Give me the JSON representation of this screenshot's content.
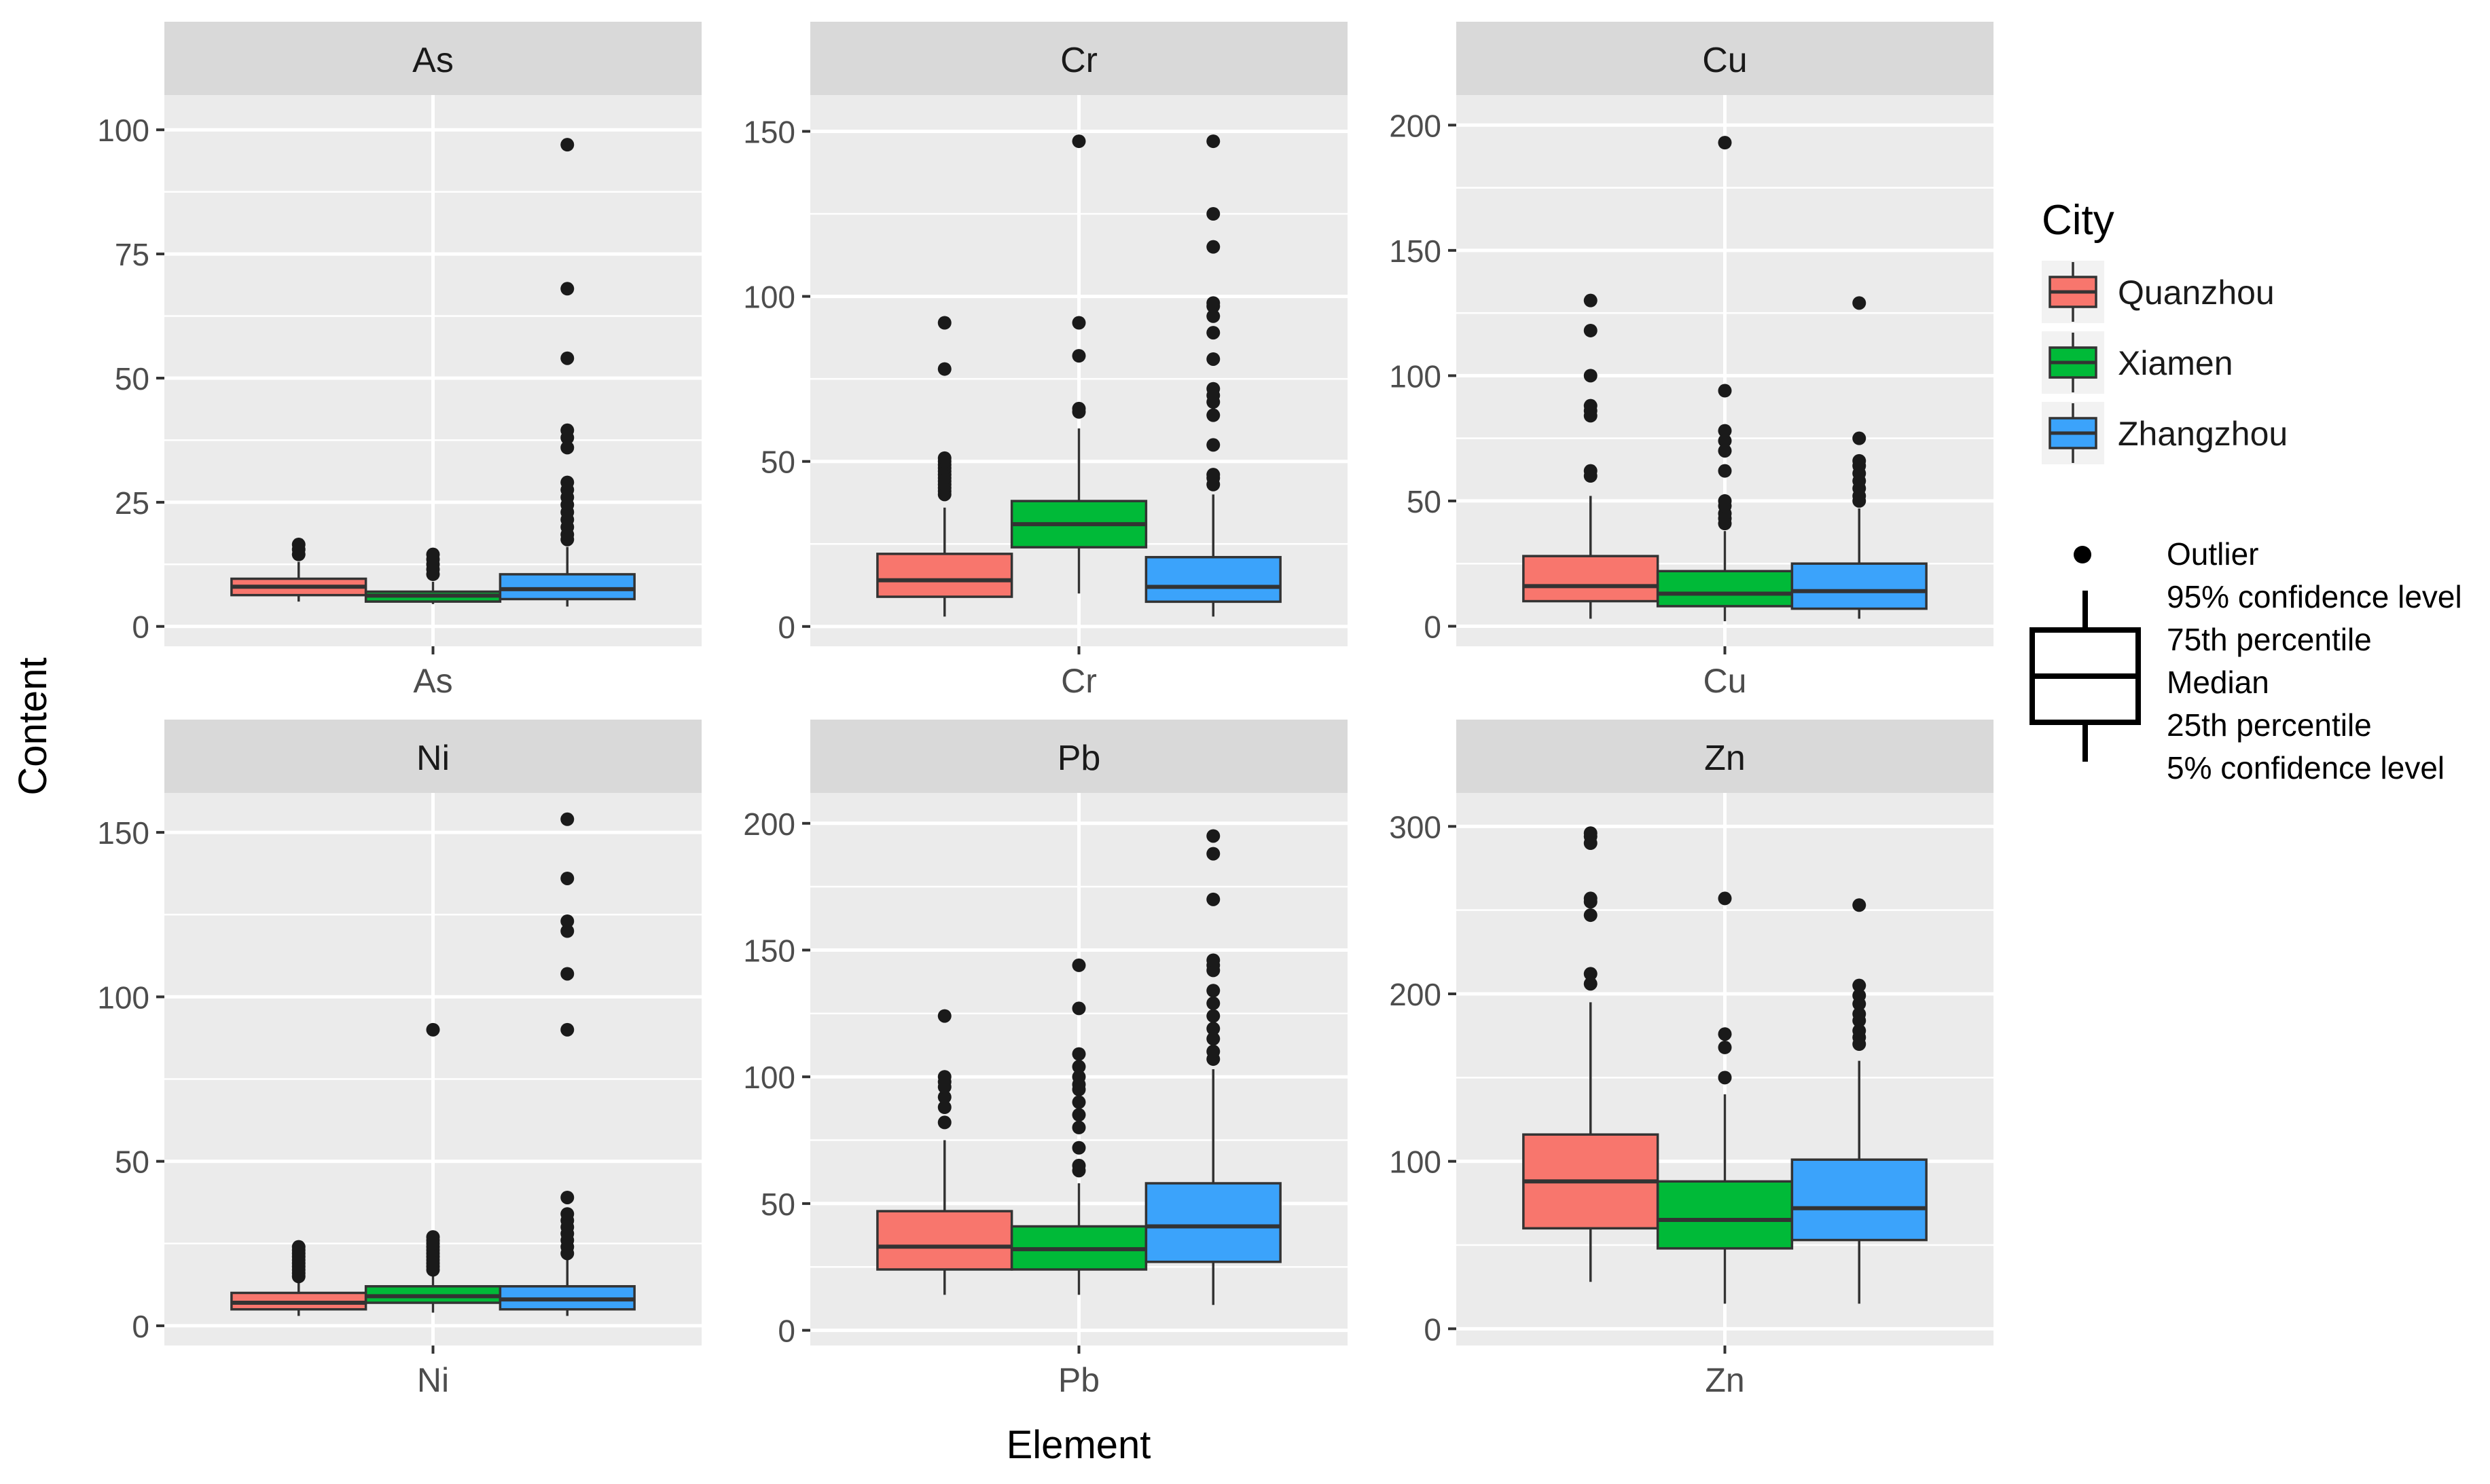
{
  "chart_data": {
    "type": "boxplot",
    "xlabel": "Element",
    "ylabel": "Content",
    "legend": {
      "title": "City",
      "position": "right",
      "entries": [
        {
          "name": "Quanzhou",
          "color": "#F8766D"
        },
        {
          "name": "Xiamen",
          "color": "#00BA38"
        },
        {
          "name": "Zhangzhou",
          "color": "#3BA3FB"
        }
      ]
    },
    "key": {
      "outlier": "Outlier",
      "upper_whisker": "95% confidence level",
      "upper_hinge": "75th percentile",
      "median": "Median",
      "lower_hinge": "25th percentile",
      "lower_whisker": "5% confidence level"
    },
    "panels": [
      {
        "element": "As",
        "ylim": [
          -4,
          107
        ],
        "ticks": [
          0,
          25,
          50,
          75,
          100
        ],
        "boxes": [
          {
            "city": "Quanzhou",
            "low": 5,
            "q1": 6.3,
            "median": 8,
            "q3": 9.6,
            "high": 13,
            "outliers": [
              14.5,
              15.5,
              16.5
            ]
          },
          {
            "city": "Xiamen",
            "low": 4.5,
            "q1": 5,
            "median": 6.2,
            "q3": 7,
            "high": 9,
            "outliers": [
              10.5,
              11.5,
              12.5,
              13.5,
              14.5
            ]
          },
          {
            "city": "Zhangzhou",
            "low": 4,
            "q1": 5.5,
            "median": 7.5,
            "q3": 10.5,
            "high": 16,
            "outliers": [
              17.5,
              18.5,
              20,
              21.5,
              23,
              24.5,
              26,
              27.5,
              29,
              36,
              38,
              39.5,
              54,
              68,
              97
            ]
          }
        ]
      },
      {
        "element": "Cr",
        "ylim": [
          -6,
          161
        ],
        "ticks": [
          0,
          50,
          100,
          150
        ],
        "boxes": [
          {
            "city": "Quanzhou",
            "low": 3,
            "q1": 9,
            "median": 14,
            "q3": 22,
            "high": 36,
            "outliers": [
              40,
              41,
              42,
              43,
              44,
              45,
              46,
              47,
              48,
              49,
              50,
              51,
              78,
              92
            ]
          },
          {
            "city": "Xiamen",
            "low": 10,
            "q1": 24,
            "median": 31,
            "q3": 38,
            "high": 60,
            "outliers": [
              65,
              66,
              82,
              92,
              147
            ]
          },
          {
            "city": "Zhangzhou",
            "low": 3,
            "q1": 7.5,
            "median": 12,
            "q3": 21,
            "high": 40,
            "outliers": [
              43,
              45,
              46,
              55,
              64,
              68,
              70,
              72,
              81,
              89,
              94,
              97,
              98,
              115,
              125,
              147
            ]
          }
        ]
      },
      {
        "element": "Cu",
        "ylim": [
          -8,
          212
        ],
        "ticks": [
          0,
          50,
          100,
          150,
          200
        ],
        "boxes": [
          {
            "city": "Quanzhou",
            "low": 3,
            "q1": 10,
            "median": 16,
            "q3": 28,
            "high": 52,
            "outliers": [
              60,
              62,
              84,
              86,
              88,
              100,
              118,
              130
            ]
          },
          {
            "city": "Xiamen",
            "low": 2,
            "q1": 8,
            "median": 13,
            "q3": 22,
            "high": 38,
            "outliers": [
              41,
              43,
              45,
              48,
              50,
              62,
              70,
              74,
              78,
              94,
              193
            ]
          },
          {
            "city": "Zhangzhou",
            "low": 3,
            "q1": 7,
            "median": 14,
            "q3": 25,
            "high": 47,
            "outliers": [
              50,
              52,
              55,
              58,
              61,
              64,
              66,
              75,
              129
            ]
          }
        ]
      },
      {
        "element": "Ni",
        "ylim": [
          -6,
          162
        ],
        "ticks": [
          0,
          50,
          100,
          150
        ],
        "boxes": [
          {
            "city": "Quanzhou",
            "low": 3,
            "q1": 5,
            "median": 7,
            "q3": 10,
            "high": 14,
            "outliers": [
              15,
              16,
              17,
              18,
              19,
              20,
              21,
              22,
              23,
              24
            ]
          },
          {
            "city": "Xiamen",
            "low": 4,
            "q1": 7,
            "median": 9,
            "q3": 12,
            "high": 16,
            "outliers": [
              17,
              18,
              19,
              20,
              21,
              22,
              23,
              24,
              25,
              26,
              27,
              90
            ]
          },
          {
            "city": "Zhangzhou",
            "low": 3,
            "q1": 5,
            "median": 8,
            "q3": 12,
            "high": 20,
            "outliers": [
              22,
              24,
              26,
              28,
              30,
              32,
              34,
              39,
              90,
              107,
              120,
              123,
              136,
              154
            ]
          }
        ]
      },
      {
        "element": "Pb",
        "ylim": [
          -6,
          212
        ],
        "ticks": [
          0,
          50,
          100,
          150,
          200
        ],
        "boxes": [
          {
            "city": "Quanzhou",
            "low": 14,
            "q1": 24,
            "median": 33,
            "q3": 47,
            "high": 75,
            "outliers": [
              82,
              88,
              92,
              96,
              98,
              100,
              124
            ]
          },
          {
            "city": "Xiamen",
            "low": 14,
            "q1": 24,
            "median": 32,
            "q3": 41,
            "high": 58,
            "outliers": [
              63,
              65,
              72,
              80,
              85,
              90,
              95,
              97,
              100,
              104,
              109,
              127,
              144
            ]
          },
          {
            "city": "Zhangzhou",
            "low": 10,
            "q1": 27,
            "median": 41,
            "q3": 58,
            "high": 103,
            "outliers": [
              107,
              110,
              115,
              119,
              124,
              129,
              134,
              142,
              144,
              146,
              170,
              188,
              195
            ]
          }
        ]
      },
      {
        "element": "Zn",
        "ylim": [
          -10,
          320
        ],
        "ticks": [
          0,
          100,
          200,
          300
        ],
        "boxes": [
          {
            "city": "Quanzhou",
            "low": 28,
            "q1": 60,
            "median": 88,
            "q3": 116,
            "high": 195,
            "outliers": [
              206,
              212,
              247,
              255,
              257,
              290,
              294,
              296
            ]
          },
          {
            "city": "Xiamen",
            "low": 15,
            "q1": 48,
            "median": 65,
            "q3": 88,
            "high": 140,
            "outliers": [
              150,
              168,
              176,
              257
            ]
          },
          {
            "city": "Zhangzhou",
            "low": 15,
            "q1": 53,
            "median": 72,
            "q3": 101,
            "high": 160,
            "outliers": [
              170,
              174,
              178,
              184,
              188,
              194,
              199,
              205,
              253
            ]
          }
        ]
      }
    ]
  }
}
